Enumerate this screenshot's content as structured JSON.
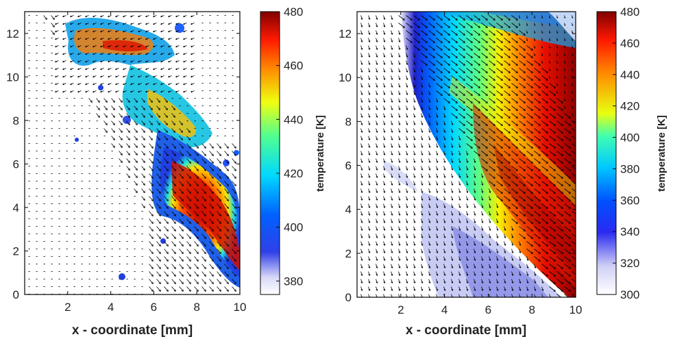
{
  "figure": {
    "xlabel_left": "x - coordinate [mm]",
    "xlabel_right": "x - coordinate [mm]",
    "colorbar_label_left": "temperature [K]",
    "colorbar_label_right": "temperature [K]"
  },
  "chart_data": [
    {
      "type": "heatmap",
      "title": "",
      "xlabel": "x - coordinate [mm]",
      "ylabel": "",
      "xlim": [
        0,
        10
      ],
      "ylim": [
        0,
        13
      ],
      "xticks": [
        "2",
        "4",
        "6",
        "8",
        "10"
      ],
      "yticks": [
        "0",
        "2",
        "4",
        "6",
        "8",
        "10",
        "12"
      ],
      "overlay": "velocity vector field (quiver)",
      "colorbar": {
        "label": "temperature [K]",
        "range": [
          375,
          480
        ],
        "ticks": [
          "380",
          "400",
          "420",
          "440",
          "460",
          "480"
        ],
        "colormap": "jet"
      },
      "grid": false
    },
    {
      "type": "heatmap",
      "title": "",
      "xlabel": "x - coordinate [mm]",
      "ylabel": "",
      "xlim": [
        0,
        10
      ],
      "ylim": [
        0,
        13
      ],
      "xticks": [
        "2",
        "4",
        "6",
        "8",
        "10"
      ],
      "yticks": [
        "0",
        "2",
        "4",
        "6",
        "8",
        "10",
        "12"
      ],
      "overlay": "velocity vector field (quiver)",
      "colorbar": {
        "label": "temperature [K]",
        "range": [
          300,
          480
        ],
        "ticks": [
          "300",
          "320",
          "340",
          "360",
          "380",
          "400",
          "420",
          "440",
          "460",
          "480"
        ],
        "colormap": "jet"
      },
      "grid": false
    }
  ]
}
